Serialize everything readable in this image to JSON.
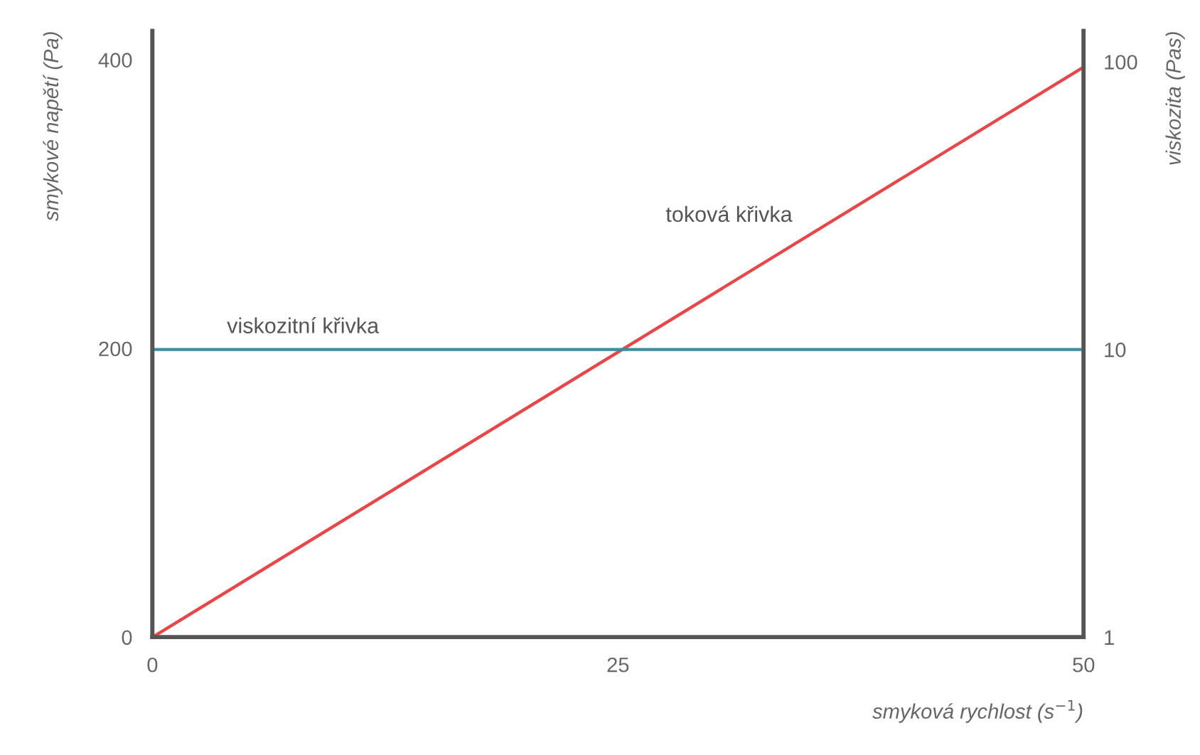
{
  "chart_data": {
    "type": "line",
    "x": [
      0,
      50
    ],
    "xlabel": "smyková rychlost (s$^{−1}$)",
    "ylabel": "smykové napětí (Pa)",
    "y2label": "viskozita (Pas)",
    "xlim": [
      0,
      50
    ],
    "xticks": [
      0,
      25,
      50
    ],
    "ylim": [
      0,
      420
    ],
    "yticks": [
      0,
      200,
      400
    ],
    "y2lim": [
      1,
      128
    ],
    "y2ticks": [
      1,
      10,
      100
    ],
    "log": "y2",
    "grid": false,
    "legend": false,
    "marker": "none",
    "line_style": "solid",
    "series": [
      {
        "name": "toková křivka",
        "color": "#e8474a",
        "values": [
          0,
          395
        ]
      },
      {
        "name": "viskozitní křivka",
        "color": "#3a8ea0",
        "values": [
          10,
          10
        ],
        "axis": "y2"
      }
    ]
  }
}
